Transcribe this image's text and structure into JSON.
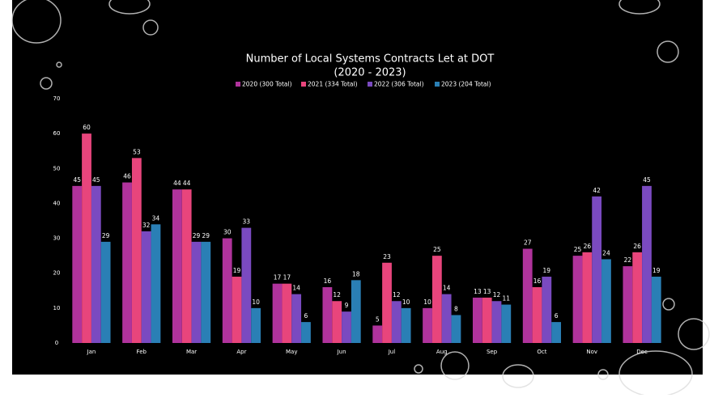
{
  "chart_data": {
    "type": "bar",
    "title": "Number of Local Systems Contracts Let at DOT",
    "subtitle": "(2020 - 2023)",
    "categories": [
      "Jan",
      "Feb",
      "Mar",
      "Apr",
      "May",
      "Jun",
      "Jul",
      "Aug",
      "Sep",
      "Oct",
      "Nov",
      "Dec"
    ],
    "series": [
      {
        "name": "2020 (300 Total)",
        "color": "#b0339c",
        "values": [
          45,
          46,
          44,
          30,
          17,
          16,
          5,
          10,
          13,
          27,
          25,
          22
        ]
      },
      {
        "name": "2021 (334 Total)",
        "color": "#e8457c",
        "values": [
          60,
          53,
          44,
          19,
          17,
          12,
          23,
          25,
          13,
          16,
          26,
          26
        ]
      },
      {
        "name": "2022 (306 Total)",
        "color": "#7a4ac0",
        "values": [
          45,
          32,
          29,
          33,
          14,
          9,
          12,
          14,
          12,
          19,
          42,
          45
        ]
      },
      {
        "name": "2023 (204 Total)",
        "color": "#2a7fb5",
        "values": [
          29,
          34,
          29,
          10,
          6,
          18,
          10,
          8,
          11,
          6,
          24,
          19
        ]
      }
    ],
    "ylim": [
      0,
      70
    ],
    "yticks": [
      0,
      10,
      20,
      30,
      40,
      50,
      60,
      70
    ],
    "grid": false,
    "legend": "top"
  }
}
